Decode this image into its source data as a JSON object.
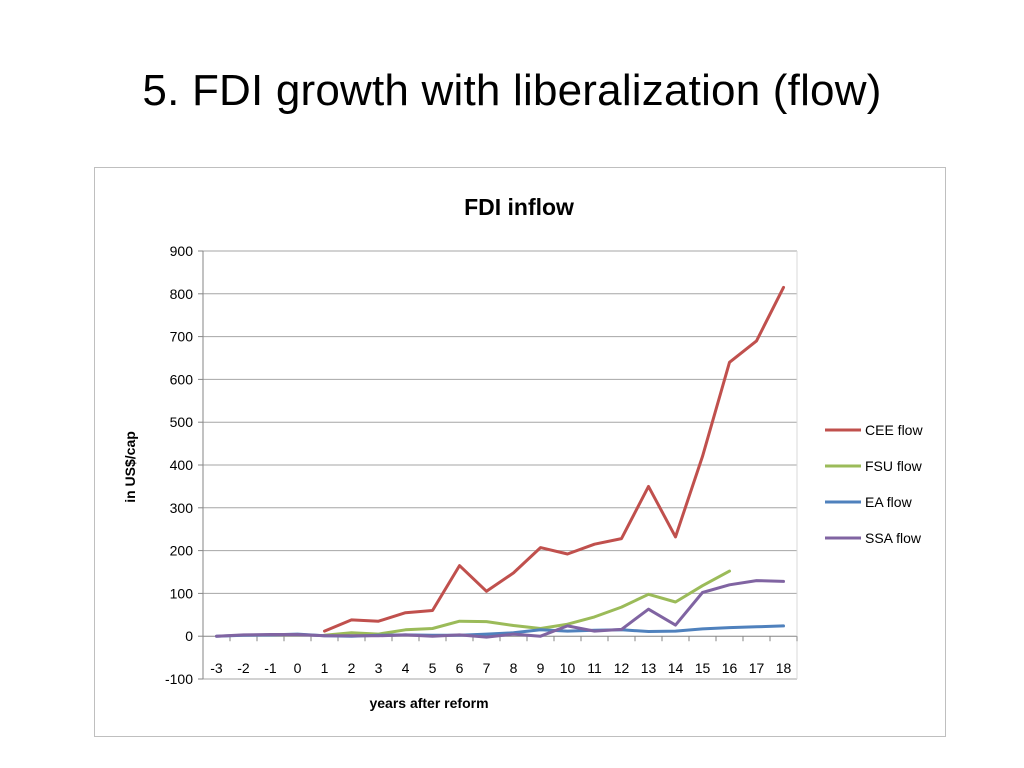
{
  "slide": {
    "title": "5.  FDI growth with liberalization (flow)"
  },
  "chart_data": {
    "type": "line",
    "title": "FDI inflow",
    "xlabel": "years after reform",
    "ylabel": "in US$/cap",
    "categories": [
      "-3",
      "-2",
      "-1",
      "0",
      "1",
      "2",
      "3",
      "4",
      "5",
      "6",
      "7",
      "8",
      "9",
      "10",
      "11",
      "12",
      "13",
      "14",
      "15",
      "16",
      "17",
      "18"
    ],
    "ylim": [
      -100,
      900
    ],
    "yticks": [
      -100,
      0,
      100,
      200,
      300,
      400,
      500,
      600,
      700,
      800,
      900
    ],
    "grid": true,
    "legend_position": "right",
    "series": [
      {
        "name": "CEE flow",
        "color": "#c0504d",
        "values": [
          null,
          null,
          null,
          null,
          12,
          38,
          35,
          55,
          60,
          165,
          105,
          148,
          207,
          192,
          215,
          228,
          350,
          232,
          420,
          640,
          690,
          815
        ]
      },
      {
        "name": "FSU flow",
        "color": "#9bbb59",
        "values": [
          null,
          null,
          null,
          null,
          2,
          8,
          5,
          15,
          18,
          35,
          34,
          25,
          18,
          28,
          45,
          68,
          98,
          80,
          118,
          152,
          null,
          null
        ]
      },
      {
        "name": "EA flow",
        "color": "#4f81bd",
        "values": [
          0,
          2,
          3,
          5,
          1,
          0,
          2,
          3,
          2,
          2,
          5,
          8,
          15,
          12,
          14,
          15,
          11,
          12,
          17,
          20,
          22,
          24
        ]
      },
      {
        "name": "SSA flow",
        "color": "#8064a2",
        "values": [
          0,
          3,
          4,
          4,
          1,
          1,
          1,
          3,
          0,
          3,
          -2,
          5,
          0,
          24,
          12,
          16,
          63,
          26,
          102,
          120,
          130,
          128
        ]
      }
    ]
  }
}
